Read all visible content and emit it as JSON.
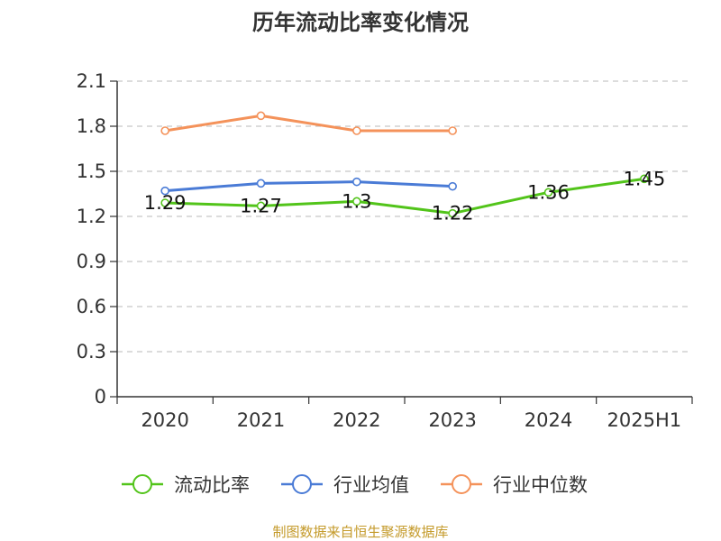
{
  "chart_data": {
    "type": "line",
    "title": "历年流动比率变化情况",
    "categories": [
      "2020",
      "2021",
      "2022",
      "2023",
      "2024",
      "2025H1"
    ],
    "ylim": [
      0,
      2.1
    ],
    "yticks": [
      "0",
      "0.3",
      "0.6",
      "0.9",
      "1.2",
      "1.5",
      "1.8",
      "2.1"
    ],
    "grid": true,
    "legend_position": "bottom",
    "series": [
      {
        "name": "流动比率",
        "color": "#52c41a",
        "values": [
          1.29,
          1.27,
          1.3,
          1.22,
          1.36,
          1.45
        ],
        "labels": [
          "1.29",
          "1.27",
          "1.3",
          "1.22",
          "1.36",
          "1.45"
        ]
      },
      {
        "name": "行业均值",
        "color": "#4a7bd6",
        "values": [
          1.37,
          1.42,
          1.43,
          1.4,
          null,
          null
        ]
      },
      {
        "name": "行业中位数",
        "color": "#f4925a",
        "values": [
          1.77,
          1.87,
          1.77,
          1.77,
          null,
          null
        ]
      }
    ],
    "source": "制图数据来自恒生聚源数据库"
  }
}
